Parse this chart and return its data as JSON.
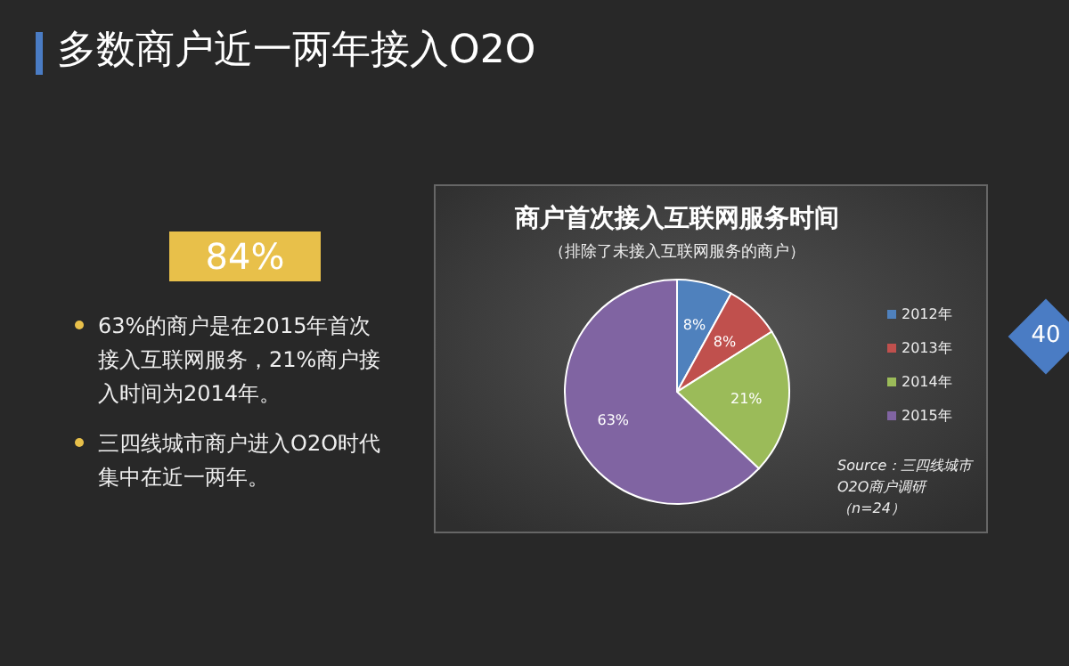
{
  "chart_data": {
    "type": "pie",
    "title": "商户首次接入互联网服务时间",
    "subtitle": "（排除了未接入互联网服务的商户）",
    "categories": [
      "2012年",
      "2013年",
      "2014年",
      "2015年"
    ],
    "values": [
      8,
      8,
      21,
      63
    ],
    "value_labels": [
      "8%",
      "8%",
      "21%",
      "63%"
    ],
    "colors": [
      "#4f81bd",
      "#c0504d",
      "#9bbb59",
      "#8064a2"
    ],
    "legend": "right",
    "annotations": [
      "多数商户近一两年接入O2O",
      "84%",
      "63%的商户是在2015年首次接入互联网服务，21%商户接入时间为2014年。",
      "三四线城市商户进入O2O时代集中在近一两年。",
      "40",
      "Source：三四线城市O2O商户调研（n=24）"
    ]
  }
}
